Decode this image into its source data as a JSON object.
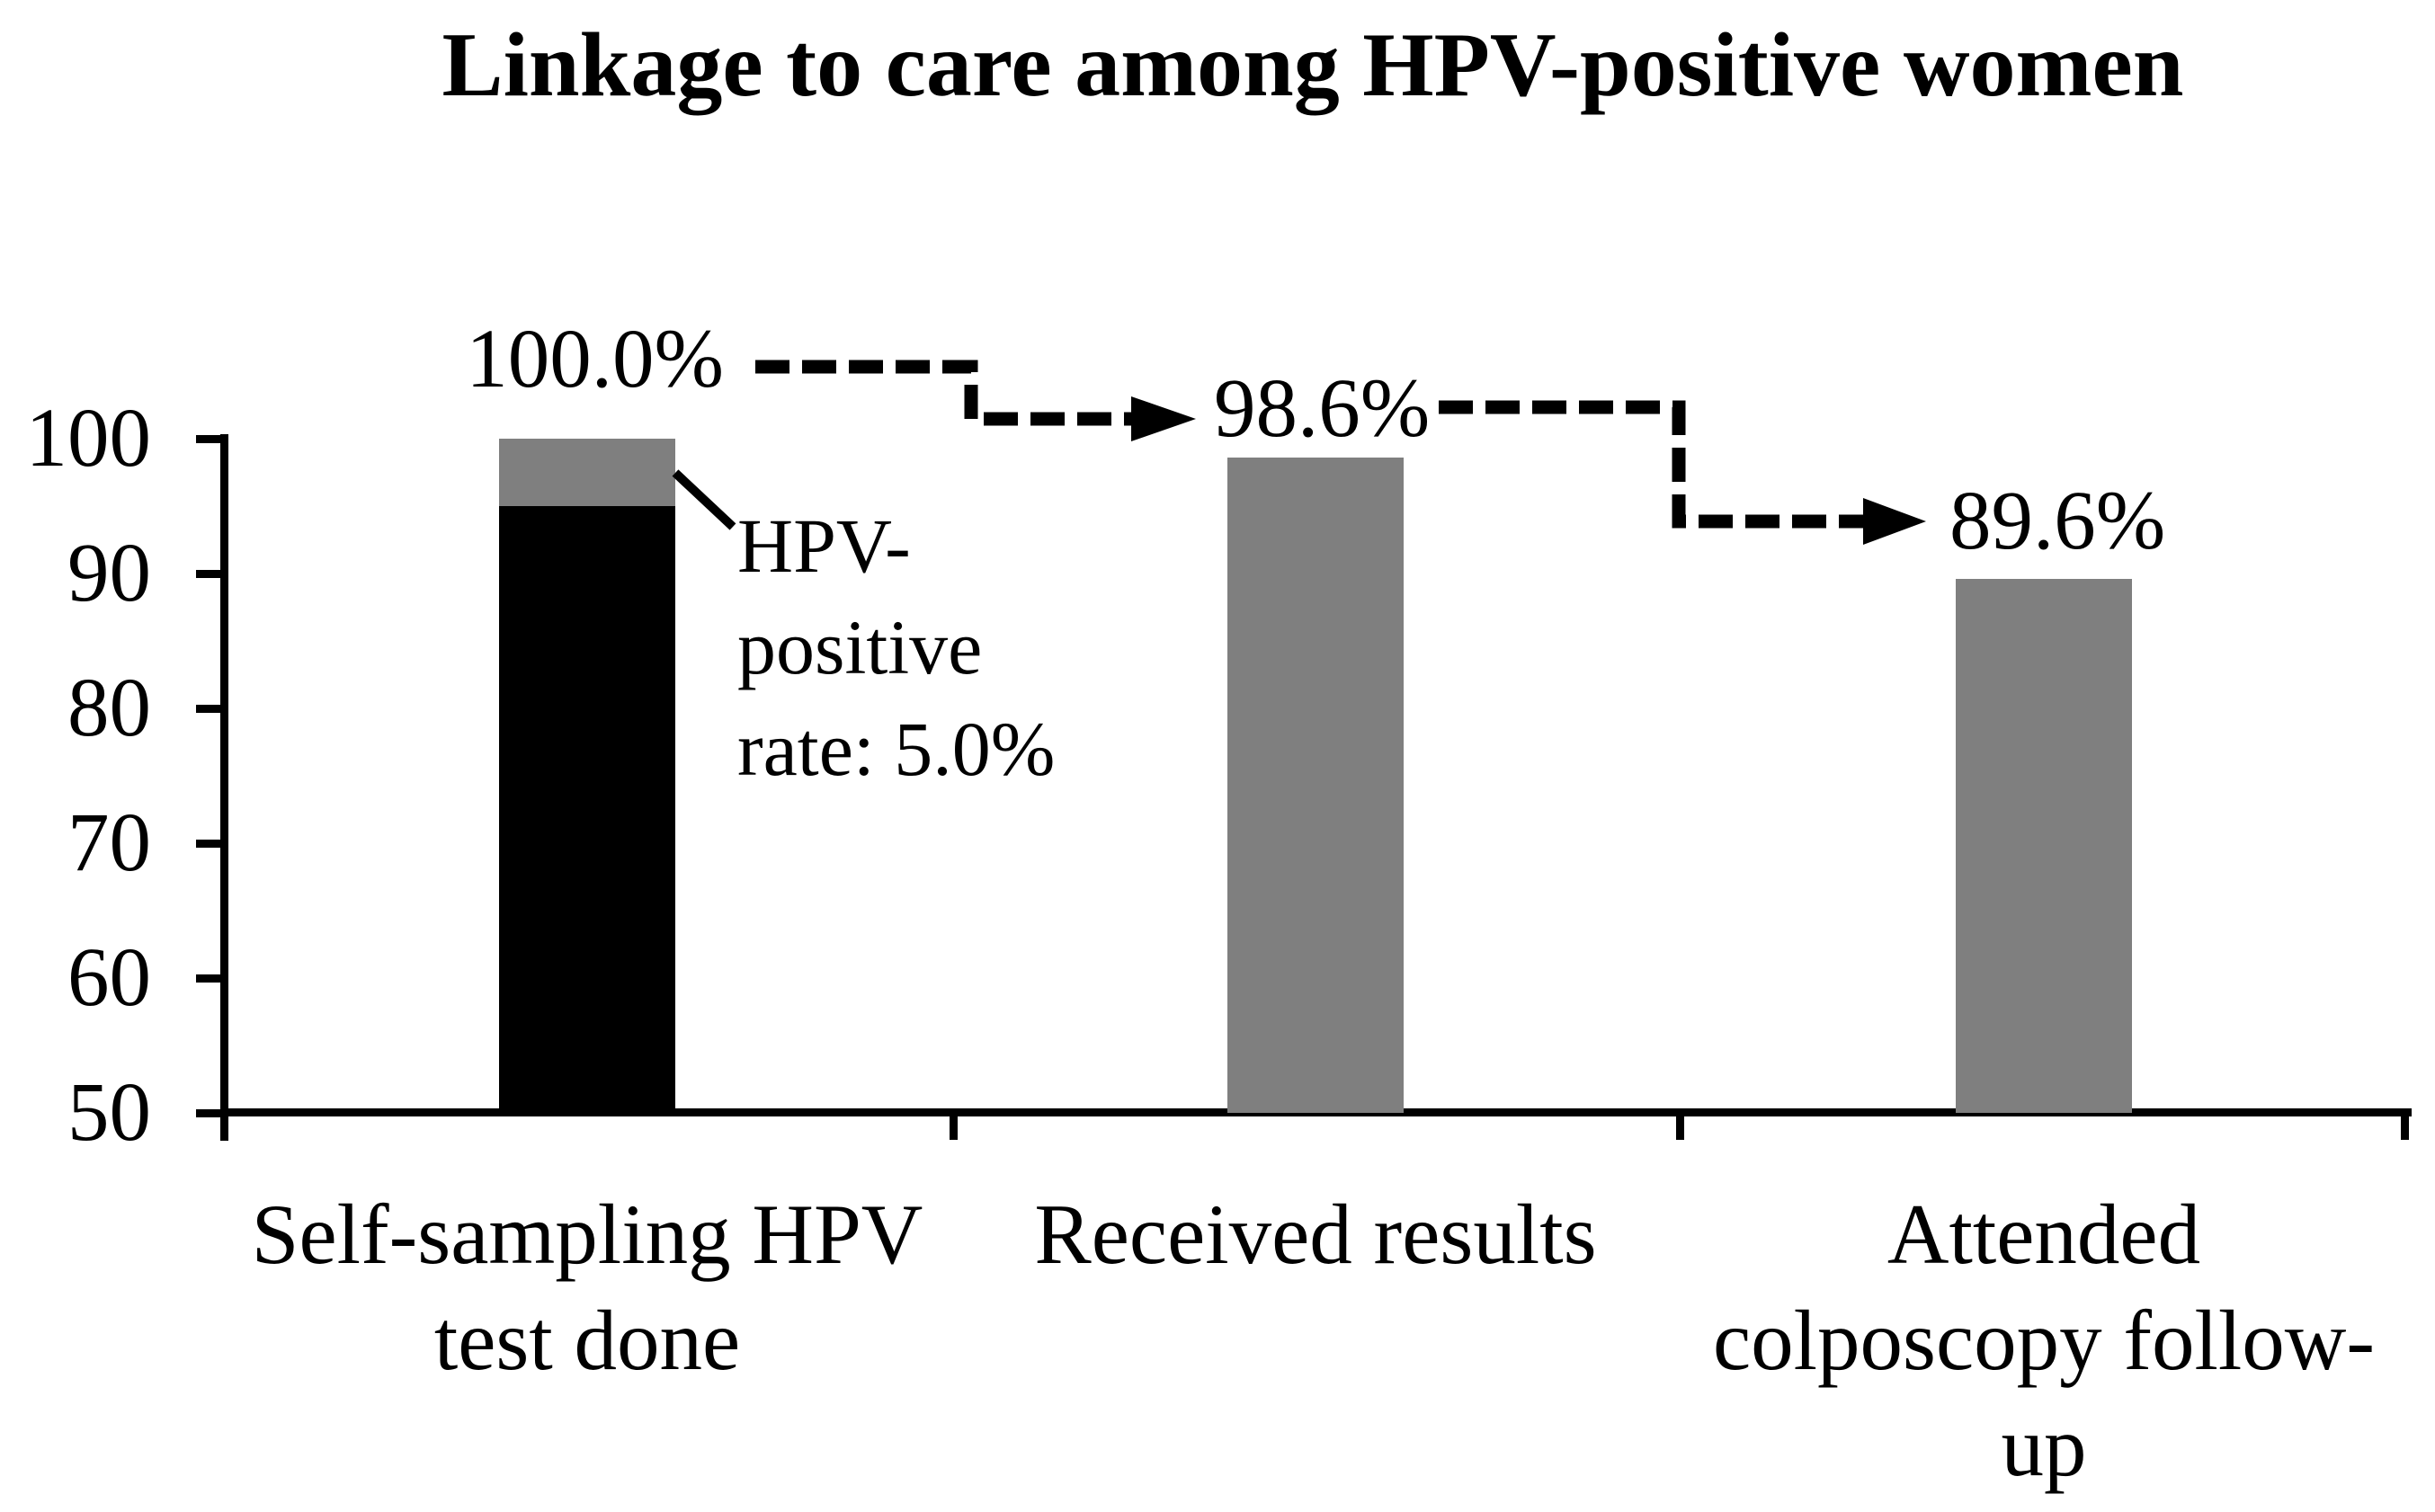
{
  "chart_data": {
    "type": "bar",
    "title": "Linkage to care among HPV-positive women",
    "categories": [
      "Self-sampling HPV test done",
      "Received results",
      "Attended colposcopy follow-up"
    ],
    "category_label_lines": [
      [
        "Self-sampling HPV",
        "test done"
      ],
      [
        "Received results"
      ],
      [
        "Attended",
        "colposcopy follow-",
        "up"
      ]
    ],
    "values": [
      100.0,
      98.6,
      89.6
    ],
    "value_labels": [
      "100.0%",
      "98.6%",
      "89.6%"
    ],
    "bar1_stack": {
      "black_segment_value": 95.0,
      "gray_cap_value": 100.0,
      "gray_cap_size": 5.0
    },
    "annotation": {
      "text": "HPV-positive rate: 5.0%",
      "lines": [
        "HPV-",
        "positive",
        "rate: 5.0%"
      ]
    },
    "flow_arrows": [
      {
        "from": "100.0%",
        "to": "98.6%",
        "style": "dashed-step"
      },
      {
        "from": "98.6%",
        "to": "89.6%",
        "style": "dashed-step"
      }
    ],
    "y_axis": {
      "ticks": [
        100,
        90,
        80,
        70,
        60,
        50
      ],
      "min": 50,
      "max": 100
    },
    "x_axis": {
      "gridlines": false
    },
    "legend": "none",
    "colors": {
      "bar_gray": "#7F7F7F",
      "bar_black": "#000000",
      "background": "#FFFFFF",
      "text": "#000000"
    }
  }
}
